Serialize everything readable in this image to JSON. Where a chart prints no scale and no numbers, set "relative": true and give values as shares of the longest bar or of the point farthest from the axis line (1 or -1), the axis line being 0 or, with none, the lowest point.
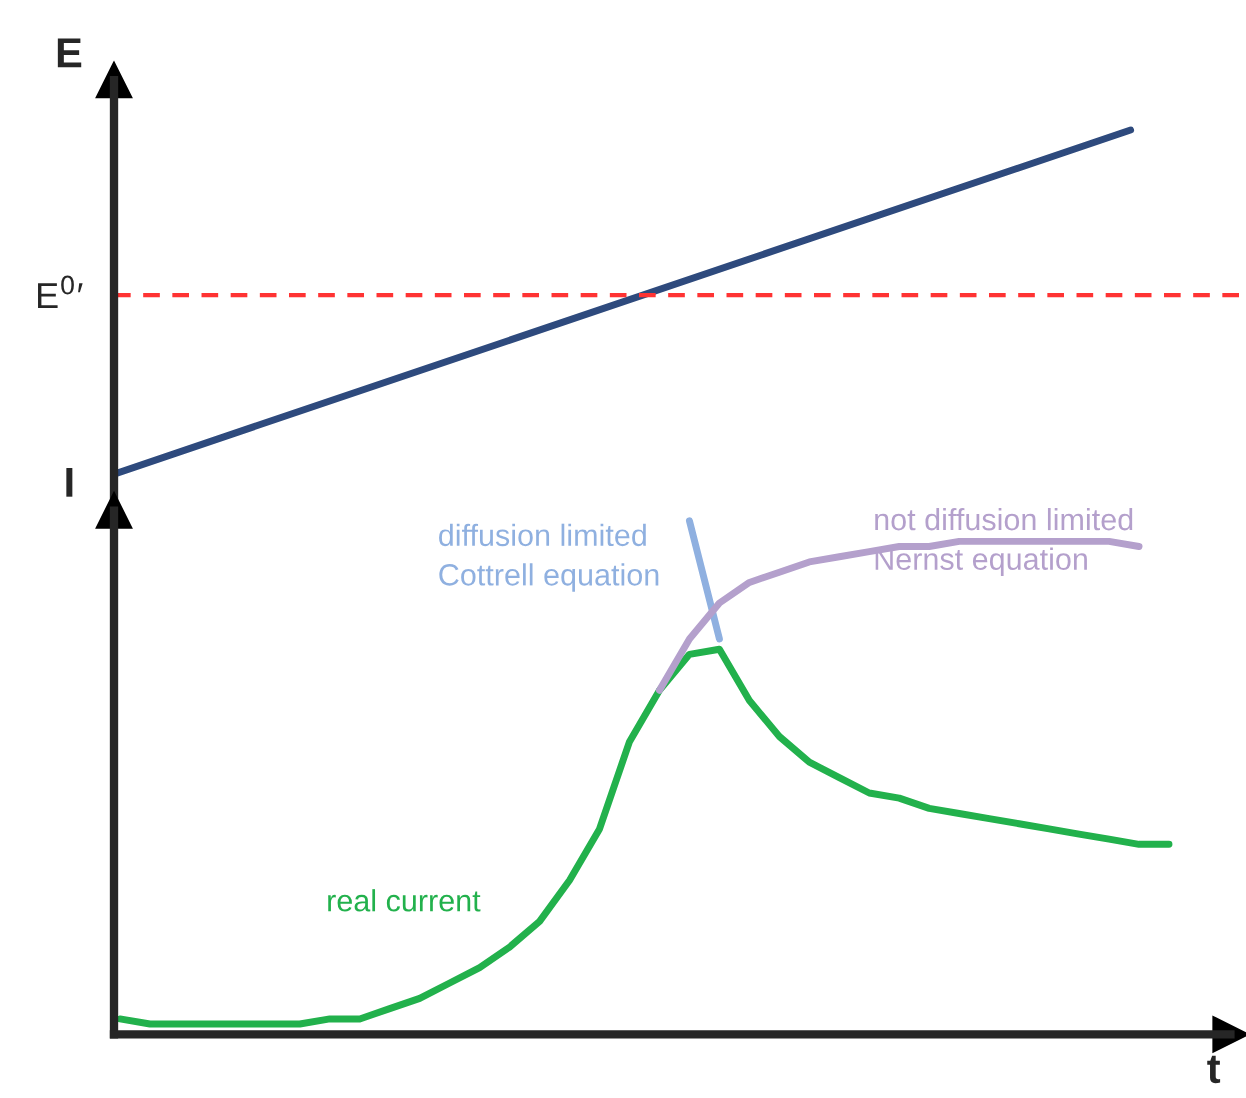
{
  "chart_data": [
    {
      "type": "line",
      "relative": true,
      "ylabel": "E",
      "categories": [
        null,
        null
      ],
      "grid": false,
      "legend": false,
      "marker": "none",
      "series": [
        {
          "color": "#2e4a7d",
          "values": [
            0,
            1
          ]
        }
      ],
      "ref_lines": [
        {
          "axis": "y",
          "value": 0.52,
          "label": "E$^{0}$′",
          "color": "#ff3333",
          "line_style": "dashed"
        }
      ]
    },
    {
      "type": "line",
      "relative": true,
      "ylabel": "I",
      "xlabel": "t",
      "grid": false,
      "legend": false,
      "marker": "none",
      "categories": [
        null,
        null,
        null,
        null,
        null,
        null,
        null,
        null,
        null,
        null,
        null,
        null,
        null,
        null,
        null,
        null,
        null,
        null,
        null,
        null,
        null,
        null,
        null,
        null,
        null,
        null,
        null,
        null,
        null,
        null,
        null,
        null,
        null,
        null,
        null,
        null
      ],
      "series": [
        {
          "name": "real current",
          "color": "#22b14c",
          "values": [
            0.03,
            0.02,
            0.02,
            0.02,
            0.02,
            0.02,
            0.02,
            0.03,
            0.03,
            0.05,
            0.07,
            0.1,
            0.13,
            0.17,
            0.22,
            0.3,
            0.4,
            0.57,
            0.67,
            0.74,
            0.75,
            0.65,
            0.58,
            0.53,
            0.5,
            0.47,
            0.46,
            0.44,
            0.43,
            0.42,
            0.41,
            0.4,
            0.39,
            0.38,
            0.37,
            0.37
          ]
        },
        {
          "name": "diffusion limited\nCottrell equation",
          "color": "#8fb0e0",
          "values": [
            null,
            null,
            null,
            null,
            null,
            null,
            null,
            null,
            null,
            null,
            null,
            null,
            null,
            null,
            null,
            null,
            null,
            null,
            null,
            1.0,
            0.77,
            null,
            null,
            null,
            null,
            null,
            null,
            null,
            null,
            null,
            null,
            null,
            null,
            null,
            null,
            null
          ]
        },
        {
          "name": "not diffusion limited\nNernst equation",
          "color": "#b4a0cc",
          "values": [
            null,
            null,
            null,
            null,
            null,
            null,
            null,
            null,
            null,
            null,
            null,
            null,
            null,
            null,
            null,
            null,
            null,
            null,
            0.67,
            0.77,
            0.84,
            0.88,
            0.9,
            0.92,
            0.93,
            0.94,
            0.95,
            0.95,
            0.96,
            0.96,
            0.96,
            0.96,
            0.96,
            0.96,
            0.95,
            null
          ]
        }
      ]
    }
  ]
}
